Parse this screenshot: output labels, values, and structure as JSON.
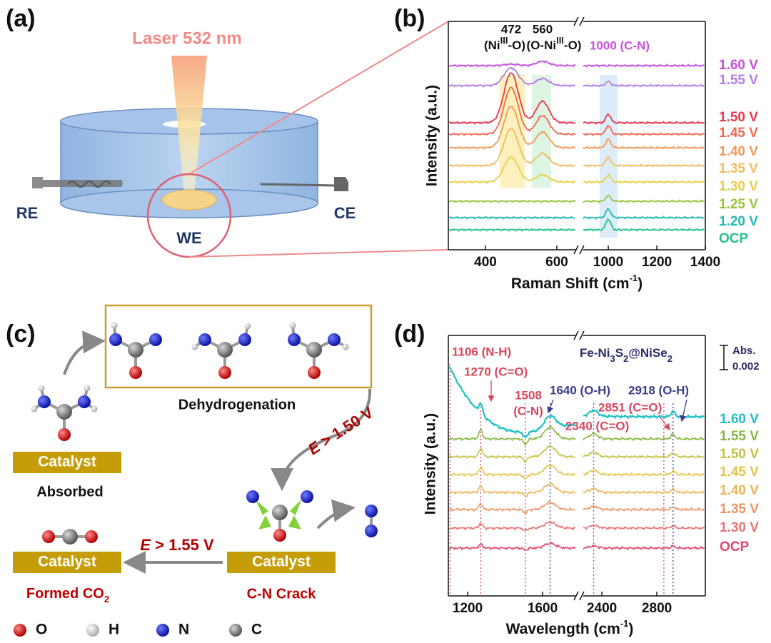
{
  "panel_labels": [
    "(a)",
    "(b)",
    "(c)",
    "(d)"
  ],
  "a": {
    "laser": "Laser 532 nm",
    "electrodes": [
      "RE",
      "WE",
      "CE"
    ]
  },
  "b": {
    "y_label": "Intensity (a.u.)",
    "x_label": [
      "Raman Shift (cm",
      "-1",
      ")"
    ],
    "x_ticks": [
      "400",
      "600",
      "1000",
      "1200",
      "1400"
    ],
    "peaks": [
      {
        "position": "472",
        "assignment": [
          "(Ni",
          "III",
          "-O)"
        ]
      },
      {
        "position": "560",
        "assignment": [
          "(O-Ni",
          "III",
          "-O)"
        ]
      }
    ],
    "annotation": "1000 (C-N)",
    "series": [
      {
        "name": "1.60 V",
        "color": "#c84fe0"
      },
      {
        "name": "1.55 V",
        "color": "#b57ee6"
      },
      {
        "name": "1.50 V",
        "color": "#e8384f"
      },
      {
        "name": "1.45 V",
        "color": "#ef6a55"
      },
      {
        "name": "1.40 V",
        "color": "#f29a58"
      },
      {
        "name": "1.35 V",
        "color": "#f0bc60"
      },
      {
        "name": "1.30 V",
        "color": "#e6cf4a"
      },
      {
        "name": "1.25 V",
        "color": "#9ac43c"
      },
      {
        "name": "1.20 V",
        "color": "#22b9b4"
      },
      {
        "name": "OCP",
        "color": "#25c38a"
      }
    ]
  },
  "c": {
    "dehydrogenation": "Dehydrogenation",
    "catalyst": [
      "Catalyst",
      "Catalyst",
      "Catalyst"
    ],
    "absorbed": "Absorbed",
    "crack": "C-N Crack",
    "formed": [
      "Formed CO",
      "2"
    ],
    "potentials": [
      [
        "E",
        " > 1.50 V"
      ],
      [
        "E",
        " > 1.55 V"
      ]
    ],
    "legend": [
      "O",
      "H",
      "N",
      "C"
    ]
  },
  "d": {
    "sample": [
      "Fe-Ni",
      "3",
      "S",
      "2",
      "@NiSe",
      "2"
    ],
    "scale": [
      "Abs.",
      "0.002"
    ],
    "y_label": "Intensity (a.u.)",
    "x_label": [
      "Wavelength (cm",
      "-1",
      ")"
    ],
    "x_ticks": [
      "1200",
      "1600",
      "2400",
      "2800"
    ],
    "annotations": [
      {
        "lines": [
          "1106 (N-H)"
        ],
        "color": "#d9465c"
      },
      {
        "lines": [
          "1270 (C=O)"
        ],
        "color": "#d9465c"
      },
      {
        "lines": [
          "1508",
          "(C-N)"
        ],
        "color": "#d9465c"
      },
      {
        "lines": [
          "1640 (O-H)"
        ],
        "color": "#3c3c8c"
      },
      {
        "lines": [
          "2340 (C=O)"
        ],
        "color": "#d9465c"
      },
      {
        "lines": [
          "2851 (C=O)"
        ],
        "color": "#d9465c"
      },
      {
        "lines": [
          "2918 (O-H)"
        ],
        "color": "#3c3c8c"
      }
    ],
    "series": [
      {
        "name": "1.60 V",
        "color": "#22c0c4"
      },
      {
        "name": "1.55 V",
        "color": "#86b843"
      },
      {
        "name": "1.50 V",
        "color": "#c6c246"
      },
      {
        "name": "1.45 V",
        "color": "#e6c448"
      },
      {
        "name": "1.40 V",
        "color": "#f0b458"
      },
      {
        "name": "1.35 V",
        "color": "#f09464"
      },
      {
        "name": "1.30 V",
        "color": "#e87474"
      },
      {
        "name": "OCP",
        "color": "#e0456a"
      }
    ]
  }
}
